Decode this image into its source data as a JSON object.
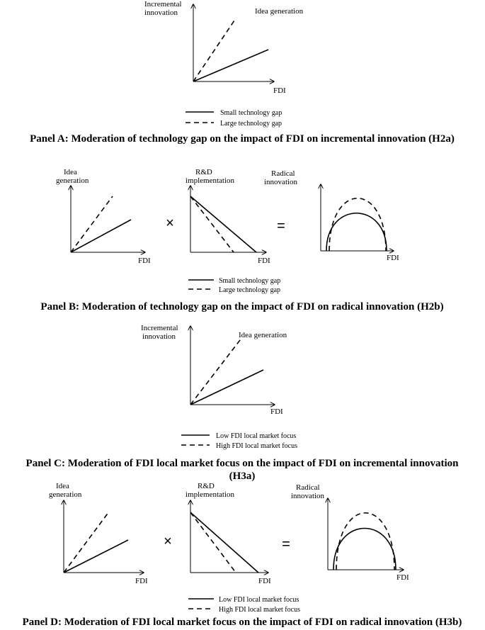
{
  "panels": {
    "a": {
      "graph": {
        "y_label_line1": "Incremental",
        "y_label_line2": "innovation",
        "x_label": "FDI",
        "curve_label": "Idea generation"
      },
      "legend": {
        "solid": "Small technology gap",
        "dashed": "Large technology gap"
      },
      "caption": "Panel A: Moderation of technology gap on the impact of FDI on incremental innovation (H2a)"
    },
    "b": {
      "graph1": {
        "y_label_line1": "Idea",
        "y_label_line2": "generation",
        "x_label": "FDI"
      },
      "op1": "×",
      "graph2": {
        "y_label_line1": "R&D",
        "y_label_line2": "implementation",
        "x_label": "FDI"
      },
      "op2": "=",
      "graph3": {
        "y_label_line1": "Radical",
        "y_label_line2": "innovation",
        "x_label": "FDI"
      },
      "legend": {
        "solid": "Small technology gap",
        "dashed": "Large technology gap"
      },
      "caption": "Panel B: Moderation of technology gap on the impact of FDI on radical innovation (H2b)"
    },
    "c": {
      "graph": {
        "y_label_line1": "Incremental",
        "y_label_line2": "innovation",
        "x_label": "FDI",
        "curve_label": "Idea generation"
      },
      "legend": {
        "solid": "Low FDI local market focus",
        "dashed": "High FDI local market focus"
      },
      "caption_line1": "Panel C: Moderation of FDI local market focus on the impact of FDI on incremental innovation",
      "caption_line2": "(H3a)"
    },
    "d": {
      "graph1": {
        "y_label_line1": "Idea",
        "y_label_line2": "generation",
        "x_label": "FDI"
      },
      "op1": "×",
      "graph2": {
        "y_label_line1": "R&D",
        "y_label_line2": "implementation",
        "x_label": "FDI"
      },
      "op2": "=",
      "graph3": {
        "y_label_line1": "Radical",
        "y_label_line2": "innovation",
        "x_label": "FDI"
      },
      "legend": {
        "solid": "Low FDI local market focus",
        "dashed": "High FDI local market focus"
      },
      "caption": "Panel D: Moderation of FDI local market focus on the impact of FDI on radical innovation (H3b)"
    }
  }
}
